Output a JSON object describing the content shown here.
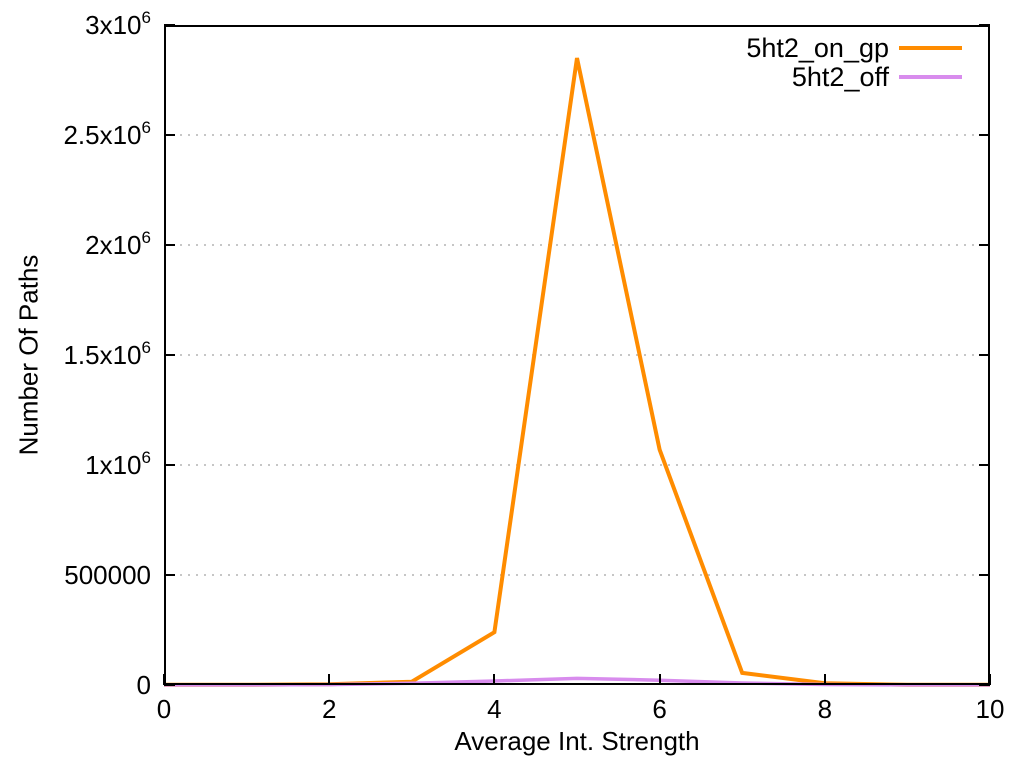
{
  "figure": {
    "background": "#ffffff",
    "border_color": "#000000",
    "grid_color": "#c6c6c6"
  },
  "chart_data": {
    "type": "line",
    "title": "",
    "xlabel": "Average Int. Strength",
    "ylabel": "Number Of Paths",
    "xlim": [
      0,
      10
    ],
    "ylim": [
      0,
      3000000
    ],
    "grid": "horizontal-dotted",
    "legend_position": "top-right-inside",
    "x": [
      0,
      1,
      2,
      3,
      4,
      5,
      6,
      7,
      8,
      9,
      10
    ],
    "series": [
      {
        "name": "5ht2_on_gp",
        "color": "#ff8c00",
        "stroke_width": 4,
        "values": [
          1000,
          1000,
          3000,
          15000,
          240000,
          2850000,
          1070000,
          55000,
          8000,
          1000,
          1000
        ]
      },
      {
        "name": "5ht2_off",
        "color": "#d88ced",
        "stroke_width": 3.5,
        "values": [
          500,
          500,
          2000,
          8000,
          18000,
          30000,
          22000,
          9000,
          2500,
          500,
          500
        ]
      }
    ],
    "xticks": {
      "values": [
        0,
        2,
        4,
        6,
        8,
        10
      ],
      "labels": [
        "0",
        "2",
        "4",
        "6",
        "8",
        "10"
      ]
    },
    "yticks": {
      "values": [
        0,
        500000,
        1000000,
        1500000,
        2000000,
        2500000,
        3000000
      ],
      "labels": [
        {
          "text": "0",
          "sup": ""
        },
        {
          "text": "500000",
          "sup": ""
        },
        {
          "text": "1x10",
          "sup": "6"
        },
        {
          "text": "1.5x10",
          "sup": "6"
        },
        {
          "text": "2x10",
          "sup": "6"
        },
        {
          "text": "2.5x10",
          "sup": "6"
        },
        {
          "text": "3x10",
          "sup": "6"
        }
      ]
    }
  }
}
